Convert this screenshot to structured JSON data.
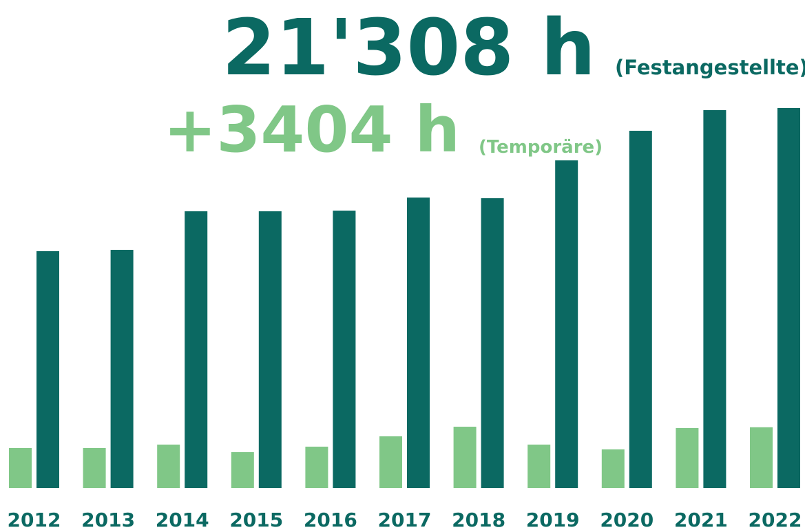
{
  "chart_data": {
    "type": "bar",
    "annotations": [
      "21'308 h",
      "+3404 h"
    ],
    "categories": [
      "2012",
      "2013",
      "2014",
      "2015",
      "2016",
      "2017",
      "2018",
      "2019",
      "2020",
      "2021",
      "2022"
    ],
    "series": [
      {
        "name": "(Temporäre)",
        "color": "#80c787",
        "values": [
          2239,
          2239,
          2432,
          2007,
          2316,
          2895,
          3435,
          2432,
          2162,
          3358,
          3404
        ]
      },
      {
        "name": "(Festangestellte)",
        "color": "#0b6962",
        "values": [
          13280,
          13355,
          15517,
          15517,
          15555,
          16289,
          16250,
          18373,
          20033,
          21191,
          21308
        ]
      }
    ]
  }
}
